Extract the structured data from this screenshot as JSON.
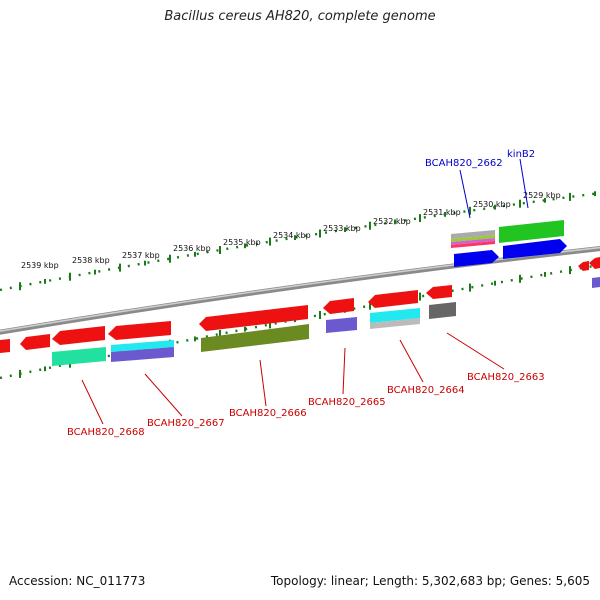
{
  "title": "Bacillus cereus AH820, complete genome",
  "accession": "Accession: NC_011773",
  "topology": "Topology: linear; Length: 5,302,683 bp; Genes: 5,605",
  "scale_labels": [
    "2539 kbp",
    "2538 kbp",
    "2537 kbp",
    "2536 kbp",
    "2535 kbp",
    "2534 kbp",
    "2533 kbp",
    "2532 kbp",
    "2531 kbp",
    "2530 kbp",
    "2529 kbp"
  ],
  "genes_below": [
    "BCAH820_2668",
    "BCAH820_2667",
    "BCAH820_2666",
    "BCAH820_2665",
    "BCAH820_2664",
    "BCAH820_2663"
  ],
  "genes_above": [
    "BCAH820_2662",
    "kinB2"
  ],
  "colors": {
    "track_dots": "#1a7a1a",
    "backbone": "#8a8a8a",
    "gene_red": "#ee1111",
    "label_red": "#cc0000",
    "label_blue": "#0000cc",
    "cog_green": "#22c422",
    "cog_blue": "#0000ee",
    "cog_teal": "#22e0a0",
    "cog_olive": "#6b8a22",
    "cog_violet": "#6a5acd",
    "cog_cyan": "#22e8f0",
    "cog_grey": "#666666"
  }
}
